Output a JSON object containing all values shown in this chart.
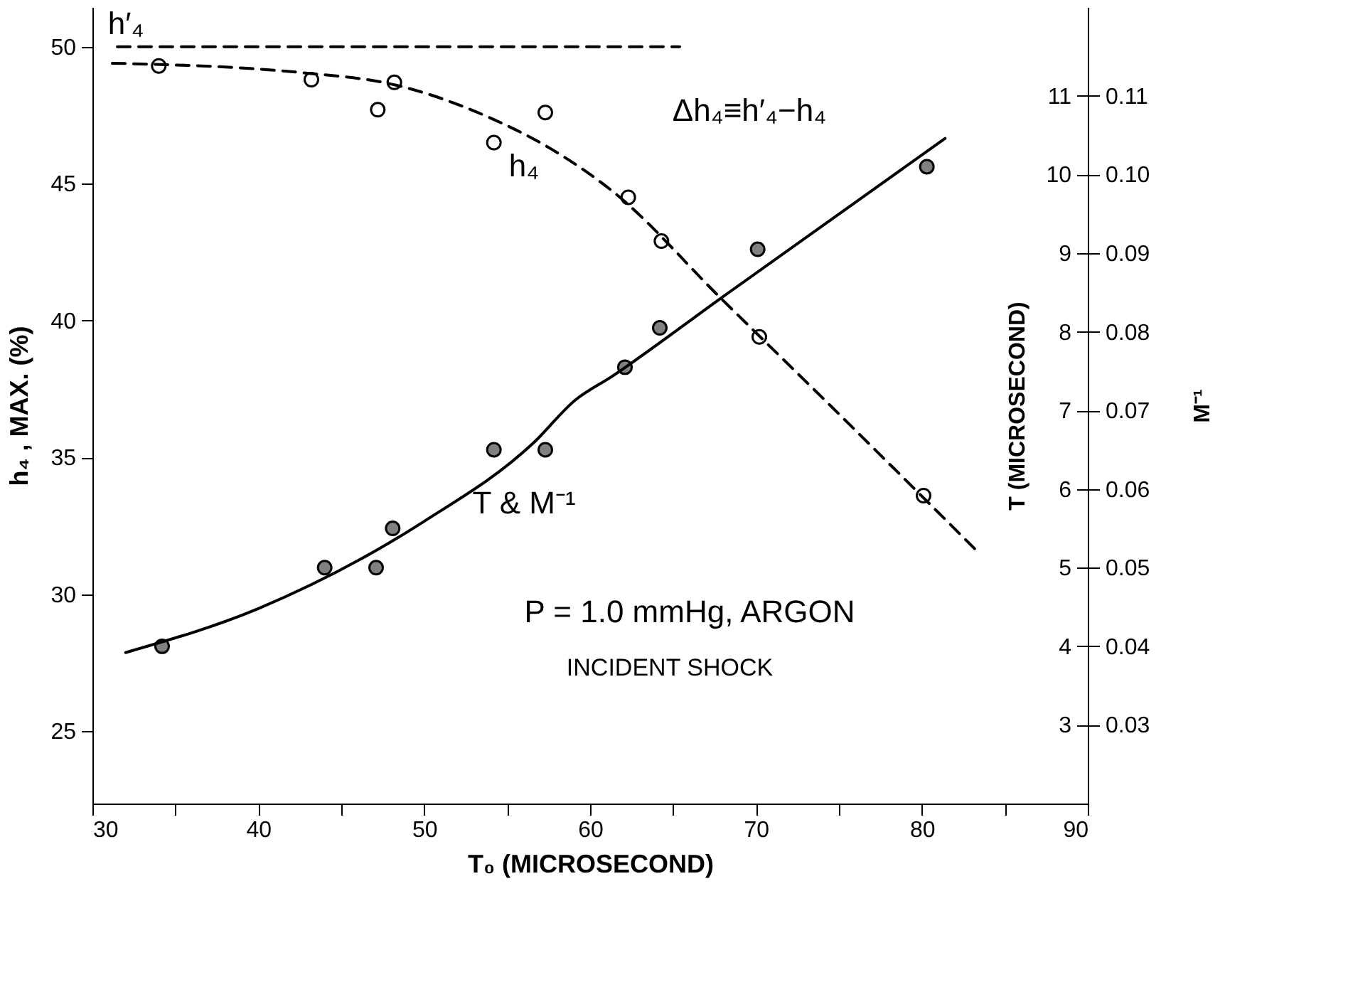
{
  "chart_data": {
    "type": "scatter",
    "xlabel": "T₀ (MICROSECOND)",
    "ylabel": "h₄ , MAX. (%)",
    "y2label": "T (MICROSECOND)",
    "y3label": "M⁻¹",
    "xlim": [
      30,
      90
    ],
    "xticks": [
      30,
      {
        "value": 35,
        "label": null
      },
      40,
      {
        "value": 45,
        "label": null
      },
      50,
      {
        "value": 55,
        "label": null
      },
      60,
      {
        "value": 65,
        "label": null
      },
      70,
      {
        "value": 75,
        "label": null
      },
      80,
      {
        "value": 85,
        "label": null
      },
      90
    ],
    "ylim": [
      22.35,
      51.45
    ],
    "yticks": [
      25,
      30,
      35,
      40,
      45,
      50
    ],
    "y2lim": [
      2.0,
      12.13
    ],
    "y2ticks": [
      3,
      4,
      5,
      6,
      7,
      8,
      9,
      10,
      11
    ],
    "y3lim": [
      0.02,
      0.1213
    ],
    "y3ticks": [
      0.03,
      0.04,
      0.05,
      0.06,
      0.07,
      0.08,
      0.09,
      {
        "value": 0.1,
        "label": "0.10"
      },
      0.11
    ],
    "grid": false,
    "series": [
      {
        "name": "h₄",
        "marker": "circle",
        "color": "#ffffff",
        "x": [
          34,
          43.2,
          47.2,
          48.2,
          54.2,
          57.3,
          62.3,
          64.3,
          70.2,
          80.1
        ],
        "values": [
          49.3,
          48.8,
          47.7,
          48.7,
          46.5,
          47.6,
          44.5,
          42.9,
          39.4,
          33.6
        ]
      },
      {
        "type": "line",
        "line_style": "dashed",
        "marker": "none",
        "color": "#000000",
        "x": [
          31.2,
          42.7,
          48.3,
          53.8,
          57.7,
          61.4,
          67.9,
          74.3,
          83.2
        ],
        "values": [
          49.4,
          49.05,
          48.6,
          47.45,
          46.25,
          44.7,
          40.8,
          37.0,
          31.65
        ]
      },
      {
        "type": "line",
        "line_style": "dashed",
        "marker": "none",
        "color": "#000000",
        "name": "h′₄",
        "x": [
          31.5,
          65.4
        ],
        "values": [
          50,
          50
        ]
      },
      {
        "axis": "y2",
        "name": "T & M⁻¹",
        "marker": "circle",
        "color": "#808080",
        "x": [
          34.2,
          44.0,
          47.1,
          48.1,
          54.2,
          57.3,
          62.1,
          64.2,
          70.1,
          80.3
        ],
        "values": [
          4.0,
          5.0,
          5.0,
          5.5,
          6.5,
          6.5,
          7.55,
          8.05,
          9.05,
          10.1
        ]
      },
      {
        "type": "line",
        "axis": "y2",
        "line_style": "solid",
        "marker": "none",
        "color": "#000000",
        "x": [
          32.0,
          40.0,
          50.0,
          56.6,
          59.1,
          61.3,
          67.9,
          81.4
        ],
        "values": [
          3.92,
          4.48,
          5.59,
          6.59,
          7.13,
          7.43,
          8.43,
          10.46
        ]
      }
    ],
    "annotations": [
      "Δh₄≡h′₄−h₄",
      "P = 1.0 mmHg, ARGON",
      "INCIDENT SHOCK"
    ]
  }
}
